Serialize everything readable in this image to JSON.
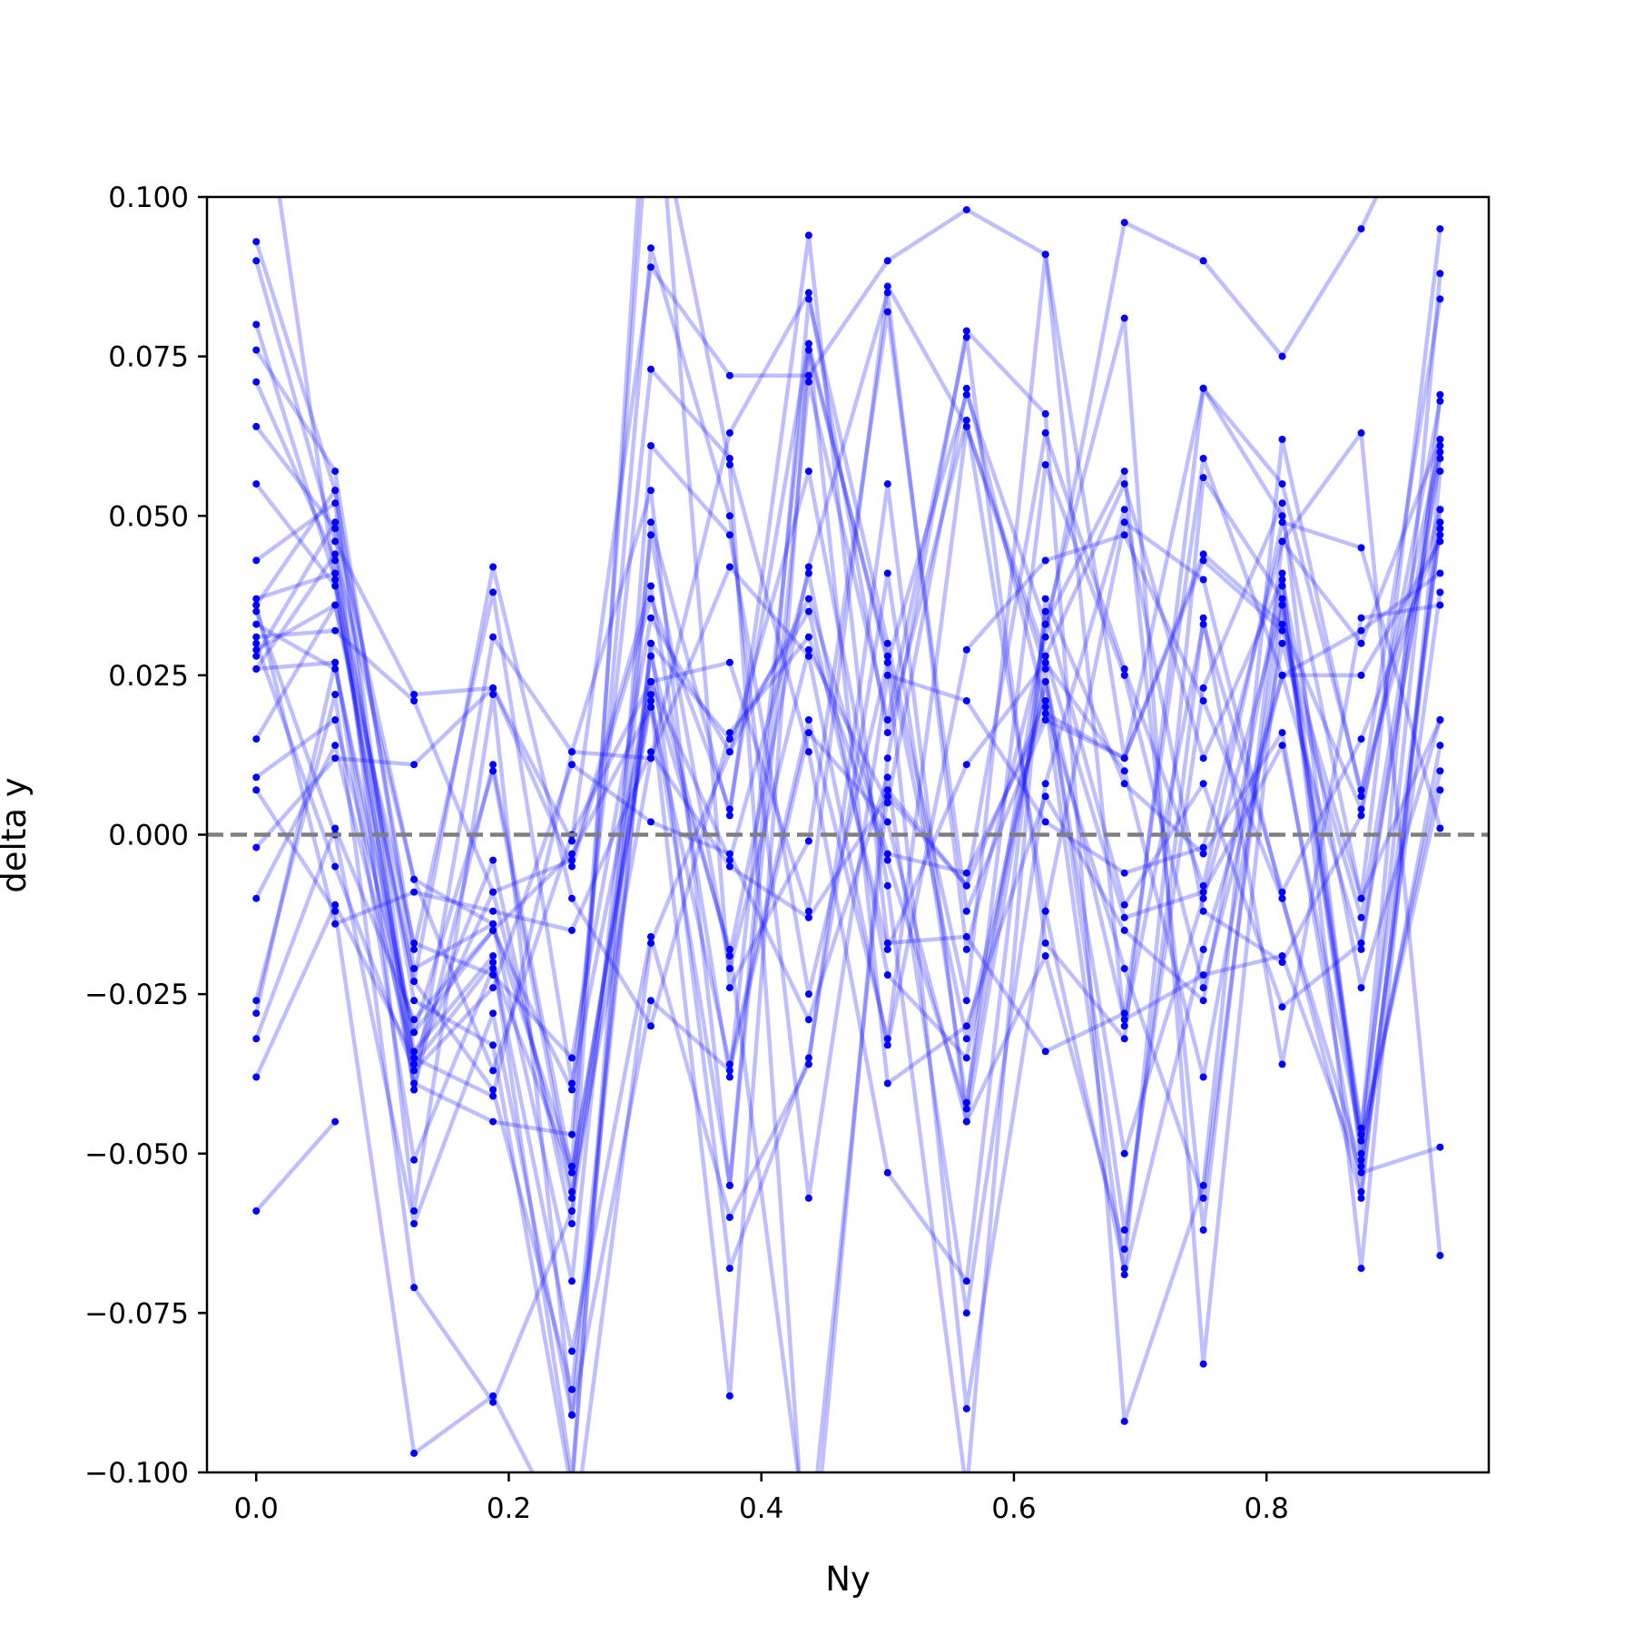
{
  "chart_data": {
    "type": "line",
    "title": "",
    "xlabel": "Ny",
    "ylabel": "delta y",
    "xlim": [
      -0.039,
      0.976
    ],
    "ylim": [
      -0.1,
      0.1
    ],
    "xticks": [
      0.0,
      0.2,
      0.4,
      0.6,
      0.8
    ],
    "xtick_labels": [
      "0.0",
      "0.2",
      "0.4",
      "0.6",
      "0.8"
    ],
    "yticks": [
      0.1,
      0.075,
      0.05,
      0.025,
      0.0,
      -0.025,
      -0.05,
      -0.075,
      -0.1
    ],
    "ytick_labels": [
      "0.100",
      "0.075",
      "0.050",
      "0.025",
      "0.000",
      "−0.025",
      "−0.050",
      "−0.075",
      "−0.100"
    ],
    "reference_line": {
      "y": 0.0,
      "style": "dashed",
      "color": "#7f7f7f"
    },
    "grid": false,
    "line_color": "#0000ff",
    "line_alpha": 0.25,
    "marker_color": "#0000ff",
    "x": [
      0.0,
      0.0625,
      0.125,
      0.1875,
      0.25,
      0.3125,
      0.375,
      0.4375,
      0.5,
      0.5625,
      0.625,
      0.6875,
      0.75,
      0.8125,
      0.875,
      0.9375
    ],
    "series": [
      {
        "values": [
          0.093,
          0.054,
          -0.036,
          -0.009,
          -0.057,
          0.028,
          -0.019,
          0.042,
          0.085,
          -0.018,
          0.031,
          0.096,
          0.09,
          0.075,
          0.095,
          0.121
        ]
      },
      {
        "values": [
          0.09,
          0.046,
          0.022,
          0.023,
          -0.001,
          0.089,
          0.072,
          0.072,
          0.09,
          0.098,
          0.091,
          0.012,
          0.07,
          0.05,
          -0.01,
          0.095
        ]
      },
      {
        "values": [
          0.08,
          0.04,
          -0.04,
          0.031,
          0.013,
          0.012,
          0.063,
          0.085,
          0.016,
          0.065,
          -0.012,
          -0.068,
          0.056,
          0.037,
          -0.047,
          0.088
        ]
      },
      {
        "values": [
          0.076,
          0.057,
          -0.021,
          -0.014,
          -0.052,
          0.119,
          0.058,
          -0.122,
          0.012,
          0.079,
          0.066,
          -0.092,
          -0.055,
          0.062,
          0.006,
          0.084
        ]
      },
      {
        "values": [
          0.071,
          0.043,
          -0.026,
          -0.033,
          -0.103,
          0.061,
          0.047,
          -0.025,
          0.027,
          0.069,
          0.033,
          0.081,
          -0.083,
          0.036,
          -0.05,
          0.069
        ]
      },
      {
        "values": [
          0.064,
          0.048,
          -0.059,
          0.022,
          -0.091,
          0.03,
          -0.068,
          -0.035,
          0.041,
          -0.042,
          0.033,
          0.057,
          -0.062,
          0.046,
          0.063,
          -0.066
        ]
      },
      {
        "values": [
          0.055,
          0.039,
          -0.034,
          -0.019,
          -0.101,
          0.049,
          0.003,
          0.094,
          -0.017,
          -0.016,
          -0.034,
          -0.028,
          0.059,
          0.025,
          -0.018,
          0.06
        ]
      },
      {
        "values": [
          0.043,
          0.052,
          -0.04,
          0.011,
          -0.053,
          0.022,
          -0.055,
          0.084,
          0.03,
          -0.026,
          0.091,
          -0.03,
          0.033,
          -0.009,
          0.015,
          0.047
        ]
      },
      {
        "values": [
          0.037,
          0.041,
          -0.023,
          0.042,
          -0.01,
          -0.03,
          0.016,
          0.031,
          -0.004,
          -0.043,
          0.058,
          0.025,
          -0.024,
          0.025,
          0.032,
          0.041
        ]
      },
      {
        "values": [
          0.036,
          0.054,
          -0.018,
          0.038,
          -0.039,
          0.024,
          0.027,
          -0.012,
          0.086,
          0.064,
          0.026,
          -0.062,
          0.023,
          0.052,
          -0.051,
          0.014
        ]
      },
      {
        "values": [
          0.033,
          0.026,
          -0.031,
          0.01,
          -0.056,
          0.012,
          0.042,
          0.028,
          -0.033,
          0.029,
          0.043,
          0.047,
          0.021,
          -0.01,
          -0.057,
          0.051
        ]
      },
      {
        "values": [
          0.031,
          0.032,
          0.021,
          -0.009,
          -0.004,
          0.039,
          -0.038,
          0.077,
          0.027,
          -0.09,
          -0.012,
          0.049,
          0.04,
          -0.01,
          -0.052,
          0.038
        ]
      },
      {
        "values": [
          0.029,
          0.036,
          -0.017,
          -0.022,
          -0.035,
          0.034,
          0.013,
          0.057,
          -0.008,
          -0.103,
          0.037,
          0.008,
          -0.003,
          0.016,
          -0.056,
          0.049
        ]
      },
      {
        "values": [
          0.028,
          0.049,
          -0.007,
          -0.037,
          0.0,
          0.024,
          -0.004,
          0.041,
          -0.022,
          -0.035,
          0.024,
          -0.05,
          -0.01,
          0.036,
          -0.048,
          0.007
        ]
      },
      {
        "values": [
          0.026,
          0.044,
          -0.007,
          -0.014,
          -0.07,
          0.047,
          -0.021,
          0.029,
          0.005,
          0.07,
          0.02,
          -0.021,
          -0.057,
          0.039,
          -0.046,
          0.048
        ]
      },
      {
        "values": [
          0.015,
          0.036,
          -0.023,
          -0.04,
          -0.087,
          0.03,
          0.015,
          0.035,
          -0.018,
          0.011,
          0.027,
          0.01,
          -0.038,
          0.03,
          -0.013,
          0.062
        ]
      },
      {
        "values": [
          0.009,
          0.018,
          -0.031,
          -0.015,
          -0.003,
          0.02,
          -0.036,
          0.018,
          -0.032,
          0.064,
          0.028,
          0.055,
          0.012,
          0.04,
          -0.024,
          0.018
        ]
      },
      {
        "values": [
          -0.002,
          0.012,
          0.011,
          0.023,
          -0.005,
          0.037,
          0.004,
          0.077,
          -0.039,
          -0.03,
          0.006,
          -0.015,
          -0.026,
          0.041,
          -0.068,
          0.057
        ]
      },
      {
        "values": [
          -0.01,
          0.014,
          -0.035,
          -0.041,
          0.013,
          0.054,
          -0.055,
          0.071,
          0.018,
          0.078,
          -0.017,
          -0.032,
          0.07,
          0.055,
          0.007,
          0.051
        ]
      },
      {
        "values": [
          -0.026,
          0.022,
          -0.071,
          -0.089,
          -0.059,
          0.024,
          -0.018,
          -0.113,
          0.007,
          -0.008,
          0.021,
          -0.069,
          -0.018,
          0.025,
          0.025,
          0.046
        ]
      },
      {
        "values": [
          -0.028,
          0.027,
          -0.039,
          -0.045,
          -0.047,
          0.092,
          0.05,
          -0.057,
          0.025,
          0.021,
          0.002,
          -0.006,
          -0.002,
          0.046,
          0.03,
          0.062
        ]
      },
      {
        "values": [
          -0.032,
          0.001,
          -0.029,
          -0.015,
          -0.04,
          0.073,
          0.059,
          0.013,
          -0.053,
          -0.07,
          0.035,
          -0.011,
          0.008,
          -0.027,
          -0.017,
          0.059
        ]
      },
      {
        "values": [
          -0.038,
          -0.011,
          -0.035,
          -0.004,
          -0.061,
          0.131,
          -0.024,
          -0.001,
          0.082,
          -0.012,
          0.018,
          0.012,
          0.044,
          0.033,
          0.004,
          0.061
        ]
      },
      {
        "values": [
          -0.059,
          -0.045,
          null,
          null,
          null,
          null,
          null,
          null,
          null,
          null,
          null,
          null,
          null,
          null,
          null,
          null
        ]
      },
      {
        "values": [
          0.125,
          0.04,
          -0.036,
          -0.02,
          -0.081,
          -0.016,
          -0.06,
          -0.036,
          0.055,
          -0.045,
          0.028,
          -0.013,
          -0.009,
          0.014,
          -0.048,
          0.01
        ]
      },
      {
        "values": [
          0.035,
          0.0,
          -0.061,
          -0.028,
          -0.091,
          -0.026,
          -0.037,
          0.016,
          0.002,
          -0.045,
          -0.019,
          -0.065,
          0.034,
          -0.036,
          0.034,
          0.036
        ]
      },
      {
        "values": [
          0.03,
          -0.005,
          -0.037,
          -0.024,
          0.011,
          0.002,
          -0.003,
          -0.029,
          0.009,
          -0.075,
          0.008,
          0.051,
          -0.012,
          -0.02,
          0.003,
          0.068
        ]
      },
      {
        "values": [
          0.007,
          -0.012,
          -0.097,
          -0.088,
          -0.112,
          -0.017,
          0.013,
          0.037,
          -0.003,
          -0.006,
          0.019,
          0.012,
          0.043,
          0.032,
          -0.01,
          0.018
        ]
      },
      {
        "values": [
          0.036,
          -0.014,
          -0.009,
          -0.012,
          -0.015,
          0.013,
          -0.005,
          -0.013,
          0.006,
          -0.008,
          0.063,
          0.026,
          -0.008,
          0.049,
          0.045,
          0.001
        ]
      },
      {
        "values": [
          0.026,
          0.027,
          -0.051,
          -0.021,
          -0.053,
          0.021,
          -0.088,
          0.076,
          0.028,
          -0.032,
          0.024,
          -0.029,
          -0.022,
          -0.019,
          -0.053,
          -0.049
        ]
      }
    ]
  }
}
